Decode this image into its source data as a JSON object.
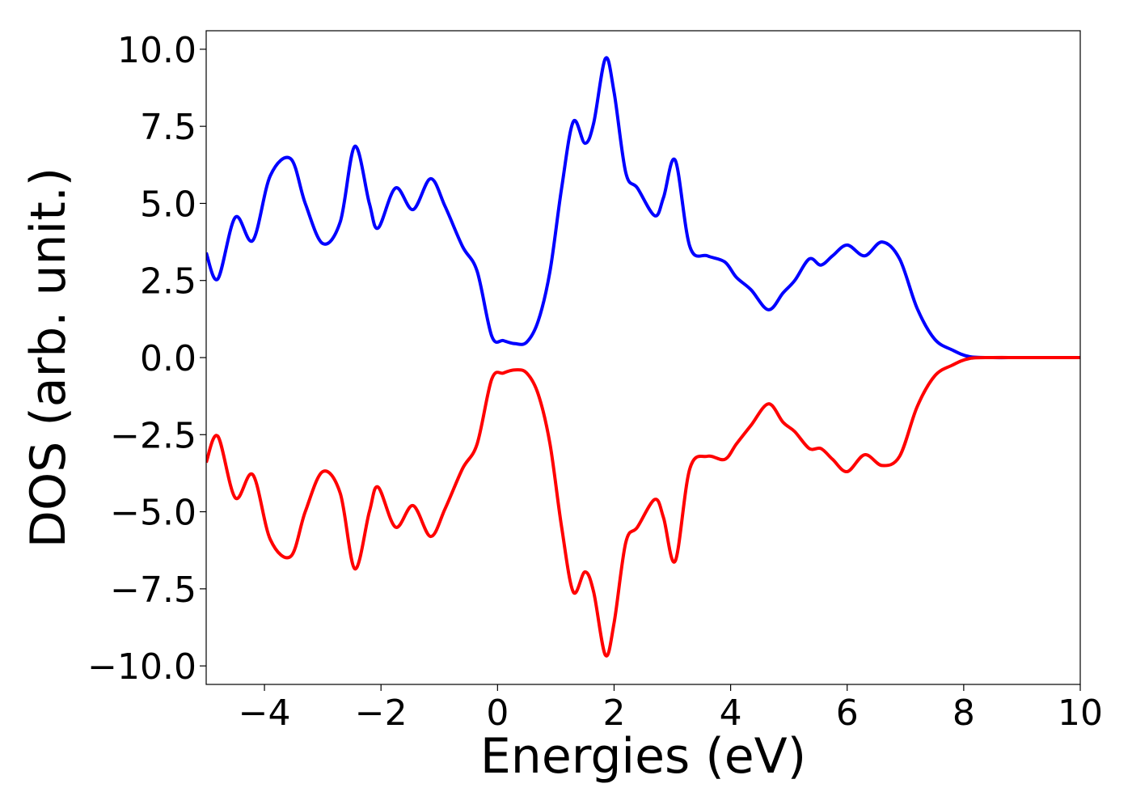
{
  "chart_data": {
    "type": "line",
    "title": "",
    "xlabel": "Energies (eV)",
    "ylabel": "DOS (arb. unit.)",
    "xlim": [
      -5,
      10
    ],
    "ylim": [
      -10.6,
      10.6
    ],
    "grid": false,
    "legend": "none",
    "xticks": [
      -4,
      -2,
      0,
      2,
      4,
      6,
      8,
      10
    ],
    "xtick_labels": [
      "−4",
      "−2",
      "0",
      "2",
      "4",
      "6",
      "8",
      "10"
    ],
    "yticks": [
      10,
      7.5,
      5,
      2.5,
      0,
      -2.5,
      -5,
      -7.5,
      -10
    ],
    "ytick_labels": [
      "10.0",
      "7.5",
      "5.0",
      "2.5",
      "0.0",
      "−2.5",
      "−5.0",
      "−7.5",
      "−10.0"
    ],
    "series": [
      {
        "color": "#0000ff",
        "x": [
          -5.0,
          -4.8,
          -4.5,
          -4.2,
          -3.9,
          -3.55,
          -3.3,
          -3.0,
          -2.7,
          -2.45,
          -2.2,
          -2.05,
          -1.75,
          -1.45,
          -1.15,
          -0.9,
          -0.6,
          -0.35,
          -0.1,
          0.1,
          0.3,
          0.5,
          0.7,
          0.9,
          1.1,
          1.3,
          1.5,
          1.65,
          1.85,
          2.0,
          2.2,
          2.4,
          2.7,
          2.85,
          3.05,
          3.3,
          3.6,
          3.9,
          4.1,
          4.35,
          4.65,
          4.9,
          5.1,
          5.35,
          5.55,
          5.75,
          6.0,
          6.3,
          6.6,
          6.9,
          7.2,
          7.5,
          7.8,
          8.1,
          8.5,
          9.0,
          10.0
        ],
        "y": [
          3.4,
          2.55,
          4.55,
          3.8,
          5.9,
          6.45,
          5.0,
          3.7,
          4.4,
          6.85,
          5.0,
          4.2,
          5.5,
          4.8,
          5.8,
          4.9,
          3.6,
          2.8,
          0.7,
          0.55,
          0.45,
          0.5,
          1.2,
          2.8,
          5.5,
          7.65,
          6.95,
          7.6,
          9.7,
          8.6,
          6.0,
          5.5,
          4.6,
          5.2,
          6.4,
          3.6,
          3.3,
          3.1,
          2.6,
          2.2,
          1.55,
          2.1,
          2.5,
          3.2,
          3.0,
          3.3,
          3.65,
          3.3,
          3.75,
          3.2,
          1.6,
          0.6,
          0.25,
          0.03,
          0.0,
          0.0,
          0.0
        ]
      },
      {
        "color": "#ff0000",
        "x": [
          -5.0,
          -4.8,
          -4.5,
          -4.2,
          -3.9,
          -3.55,
          -3.3,
          -3.0,
          -2.7,
          -2.45,
          -2.2,
          -2.05,
          -1.75,
          -1.45,
          -1.15,
          -0.9,
          -0.6,
          -0.35,
          -0.1,
          0.1,
          0.3,
          0.5,
          0.7,
          0.9,
          1.1,
          1.3,
          1.5,
          1.65,
          1.85,
          2.0,
          2.2,
          2.4,
          2.7,
          2.85,
          3.05,
          3.3,
          3.6,
          3.9,
          4.1,
          4.35,
          4.65,
          4.9,
          5.1,
          5.35,
          5.55,
          5.75,
          6.0,
          6.3,
          6.6,
          6.9,
          7.2,
          7.5,
          7.8,
          8.1,
          8.5,
          9.0,
          10.0
        ],
        "y": [
          -3.4,
          -2.55,
          -4.55,
          -3.8,
          -5.9,
          -6.45,
          -5.0,
          -3.7,
          -4.4,
          -6.85,
          -5.0,
          -4.2,
          -5.5,
          -4.8,
          -5.8,
          -4.9,
          -3.6,
          -2.8,
          -0.7,
          -0.5,
          -0.4,
          -0.5,
          -1.2,
          -2.8,
          -5.5,
          -7.6,
          -6.95,
          -7.6,
          -9.65,
          -8.6,
          -6.0,
          -5.5,
          -4.6,
          -5.2,
          -6.6,
          -3.6,
          -3.2,
          -3.3,
          -2.8,
          -2.2,
          -1.5,
          -2.1,
          -2.4,
          -2.95,
          -2.95,
          -3.3,
          -3.7,
          -3.15,
          -3.5,
          -3.2,
          -1.6,
          -0.6,
          -0.25,
          -0.03,
          0.0,
          0.0,
          0.0
        ]
      }
    ]
  }
}
